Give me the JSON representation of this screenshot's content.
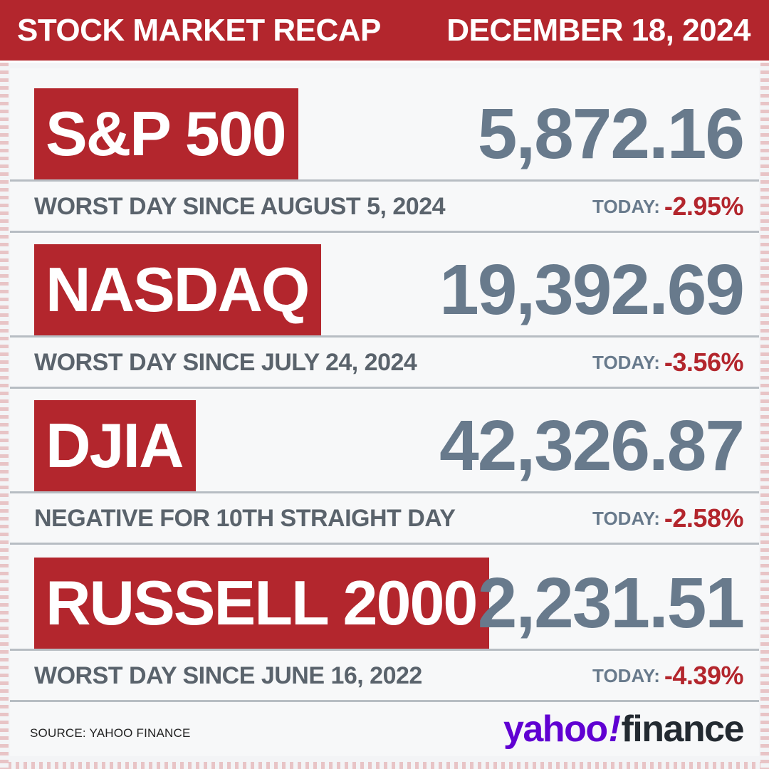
{
  "header": {
    "title": "STOCK MARKET RECAP",
    "date": "DECEMBER 18, 2024"
  },
  "indices": [
    {
      "name": "S&P 500",
      "value": "5,872.16",
      "note": "WORST DAY SINCE AUGUST 5, 2024",
      "today_label": "TODAY:",
      "change": "-2.95%"
    },
    {
      "name": "NASDAQ",
      "value": "19,392.69",
      "note": "WORST DAY SINCE JULY 24, 2024",
      "today_label": "TODAY:",
      "change": "-3.56%"
    },
    {
      "name": "DJIA",
      "value": "42,326.87",
      "note": "NEGATIVE FOR 10TH STRAIGHT DAY",
      "today_label": "TODAY:",
      "change": "-2.58%"
    },
    {
      "name": "RUSSELL 2000",
      "value": "2,231.51",
      "note": "WORST DAY SINCE JUNE 16, 2022",
      "today_label": "TODAY:",
      "change": "-4.39%"
    }
  ],
  "footer": {
    "source": "SOURCE: YAHOO FINANCE",
    "logo_yahoo": "yahoo",
    "logo_bang": "!",
    "logo_finance": "finance"
  },
  "colors": {
    "accent_red": "#b3262d",
    "value_slate": "#687a8c",
    "yahoo_purple": "#6001d2"
  }
}
